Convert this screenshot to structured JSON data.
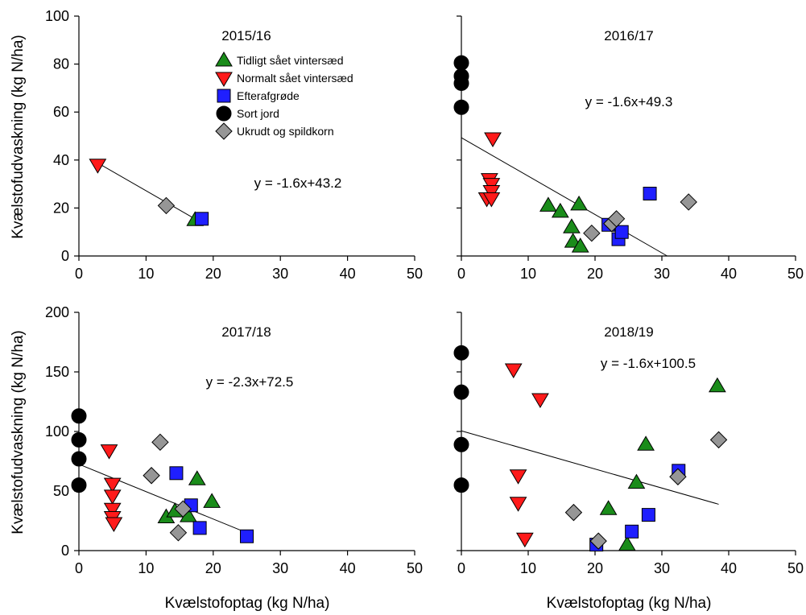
{
  "ylabel": "Kvælstofudvaskning (kg N/ha)",
  "xlabel": "Kvælstofoptag (kg N/ha)",
  "legend": [
    {
      "name": "Tidligt sået vintersæd",
      "marker": "triangle-up",
      "color": "#1a8c1a"
    },
    {
      "name": "Normalt sået vintersæd",
      "marker": "triangle-down",
      "color": "#ff1a1a"
    },
    {
      "name": "Efterafgrøde",
      "marker": "square",
      "color": "#1f1fff"
    },
    {
      "name": "Sort jord",
      "marker": "circle",
      "color": "#000000"
    },
    {
      "name": "Ukrudt og spildkorn",
      "marker": "diamond",
      "color": "#969696"
    }
  ],
  "chart_data": [
    {
      "type": "scatter",
      "title": "2015/16",
      "xlim": [
        0,
        50
      ],
      "ylim": [
        0,
        100
      ],
      "xticks": [
        0,
        10,
        20,
        30,
        40,
        50
      ],
      "yticks": [
        0,
        20,
        40,
        60,
        80,
        100
      ],
      "equation": "y = -1.6x+43.2",
      "fit": {
        "x": [
          2.6,
          18.2
        ],
        "y": [
          39.1,
          14.0
        ]
      },
      "series": [
        {
          "name": "Tidligt sået vintersæd",
          "points": [
            [
              17.3,
              15
            ]
          ]
        },
        {
          "name": "Normalt sået vintersæd",
          "points": [
            [
              2.8,
              38
            ]
          ]
        },
        {
          "name": "Efterafgrøde",
          "points": [
            [
              18.3,
              15.5
            ]
          ]
        },
        {
          "name": "Sort jord",
          "points": []
        },
        {
          "name": "Ukrudt og spildkorn",
          "points": [
            [
              13,
              21
            ]
          ]
        }
      ]
    },
    {
      "type": "scatter",
      "title": "2016/17",
      "xlim": [
        0,
        50
      ],
      "ylim": [
        0,
        100
      ],
      "xticks": [
        0,
        10,
        20,
        30,
        40,
        50
      ],
      "yticks": [
        0,
        20,
        40,
        60,
        80,
        100
      ],
      "equation": "y = -1.6x+49.3",
      "fit": {
        "x": [
          0,
          30.8
        ],
        "y": [
          49.3,
          0
        ]
      },
      "series": [
        {
          "name": "Tidligt sået vintersæd",
          "points": [
            [
              13,
              21
            ],
            [
              14.8,
              18.5
            ],
            [
              16.5,
              12
            ],
            [
              16.7,
              6
            ],
            [
              17.6,
              21.5
            ],
            [
              17.8,
              4
            ]
          ]
        },
        {
          "name": "Normalt sået vintersæd",
          "points": [
            [
              3.8,
              24
            ],
            [
              4.2,
              32
            ],
            [
              4.5,
              30
            ],
            [
              4.5,
              27
            ],
            [
              4.5,
              24
            ],
            [
              4.7,
              49
            ]
          ]
        },
        {
          "name": "Efterafgrøde",
          "points": [
            [
              22,
              13
            ],
            [
              23.5,
              7
            ],
            [
              24,
              10
            ],
            [
              28.2,
              26
            ]
          ]
        },
        {
          "name": "Sort jord",
          "points": [
            [
              0,
              80.5
            ],
            [
              0,
              75
            ],
            [
              0,
              72
            ],
            [
              0,
              62
            ]
          ]
        },
        {
          "name": "Ukrudt og spildkorn",
          "points": [
            [
              19.5,
              9.5
            ],
            [
              22.5,
              13.5
            ],
            [
              23.2,
              15.5
            ],
            [
              34,
              22.5
            ]
          ]
        }
      ]
    },
    {
      "type": "scatter",
      "title": "2017/18",
      "xlim": [
        0,
        50
      ],
      "ylim": [
        0,
        200
      ],
      "xticks": [
        0,
        10,
        20,
        30,
        40,
        50
      ],
      "yticks": [
        0,
        50,
        100,
        150,
        200
      ],
      "equation": "y = -2.3x+72.5",
      "fit": {
        "x": [
          0,
          25
        ],
        "y": [
          72.5,
          15
        ]
      },
      "series": [
        {
          "name": "Tidligt sået vintersæd",
          "points": [
            [
              13,
              28
            ],
            [
              14.3,
              33
            ],
            [
              16.3,
              29
            ],
            [
              17.6,
              60
            ],
            [
              19.8,
              41
            ]
          ]
        },
        {
          "name": "Normalt sået vintersæd",
          "points": [
            [
              4.5,
              84
            ],
            [
              5,
              56
            ],
            [
              5,
              46
            ],
            [
              5,
              35
            ],
            [
              5,
              28
            ],
            [
              5.2,
              23
            ]
          ]
        },
        {
          "name": "Efterafgrøde",
          "points": [
            [
              14.5,
              65
            ],
            [
              16.7,
              38
            ],
            [
              18,
              19
            ],
            [
              25,
              12
            ]
          ]
        },
        {
          "name": "Sort jord",
          "points": [
            [
              0,
              113
            ],
            [
              0,
              93
            ],
            [
              0,
              77
            ],
            [
              0,
              55
            ]
          ]
        },
        {
          "name": "Ukrudt og spildkorn",
          "points": [
            [
              10.8,
              63
            ],
            [
              12.1,
              91
            ],
            [
              14.8,
              15
            ],
            [
              15.5,
              35
            ]
          ]
        }
      ]
    },
    {
      "type": "scatter",
      "title": "2018/19",
      "xlim": [
        0,
        50
      ],
      "ylim": [
        0,
        200
      ],
      "xticks": [
        0,
        10,
        20,
        30,
        40,
        50
      ],
      "yticks": [
        0,
        50,
        100,
        150,
        200
      ],
      "equation": "y = -1.6x+100.5",
      "fit": {
        "x": [
          0,
          38.5
        ],
        "y": [
          100.5,
          38.9
        ]
      },
      "series": [
        {
          "name": "Tidligt sået vintersæd",
          "points": [
            [
              22,
              35
            ],
            [
              24.8,
              5
            ],
            [
              26.2,
              57
            ],
            [
              27.6,
              89
            ],
            [
              38.3,
              138
            ]
          ]
        },
        {
          "name": "Normalt sået vintersæd",
          "points": [
            [
              7.8,
              152
            ],
            [
              8.5,
              63
            ],
            [
              8.5,
              40
            ],
            [
              9.5,
              10
            ],
            [
              11.8,
              127
            ]
          ]
        },
        {
          "name": "Efterafgrøde",
          "points": [
            [
              20.2,
              5
            ],
            [
              25.5,
              16
            ],
            [
              28,
              30
            ],
            [
              32.5,
              67
            ]
          ]
        },
        {
          "name": "Sort jord",
          "points": [
            [
              0,
              166
            ],
            [
              0,
              133
            ],
            [
              0,
              89
            ],
            [
              0,
              55
            ]
          ]
        },
        {
          "name": "Ukrudt og spildkorn",
          "points": [
            [
              16.8,
              32
            ],
            [
              20.5,
              8
            ],
            [
              32.4,
              62
            ],
            [
              38.5,
              93
            ]
          ]
        }
      ]
    }
  ]
}
